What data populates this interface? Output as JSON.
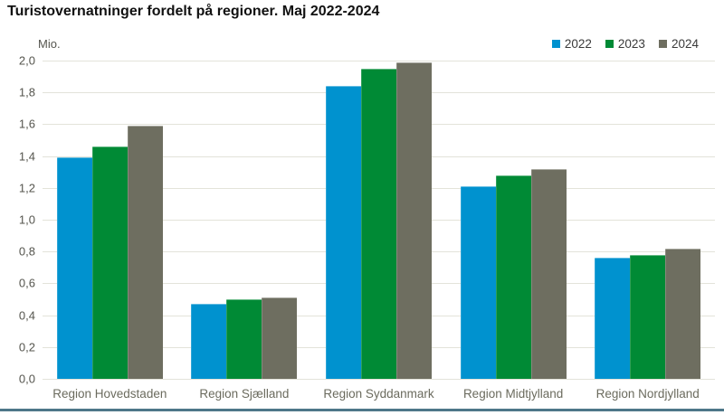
{
  "title": "Turistovernatninger fordelt på regioner. Maj 2022-2024",
  "colors": {
    "background": "#ffffff",
    "title_text": "#111111",
    "axis_text": "#55554e",
    "category_text": "#6b6b5e",
    "legend_text": "#3a3a3a",
    "gridline": "#e3e3da",
    "bottom_rule": "#4e7789",
    "series_2022": "#0092cf",
    "series_2023": "#008a35",
    "series_2024": "#6e6e60"
  },
  "chart_data": {
    "type": "bar",
    "title": "Turistovernatninger fordelt på regioner. Maj 2022-2024",
    "ylabel": "Mio.",
    "xlabel": "",
    "categories": [
      "Region Hovedstaden",
      "Region Sjælland",
      "Region Syddanmark",
      "Region Midtjylland",
      "Region Nordjylland"
    ],
    "series": [
      {
        "name": "2022",
        "color": "#0092cf",
        "values": [
          1.39,
          0.47,
          1.84,
          1.21,
          0.76
        ]
      },
      {
        "name": "2023",
        "color": "#008a35",
        "values": [
          1.46,
          0.5,
          1.95,
          1.28,
          0.78
        ]
      },
      {
        "name": "2024",
        "color": "#6e6e60",
        "values": [
          1.59,
          0.51,
          1.99,
          1.32,
          0.82
        ]
      }
    ],
    "ylim": [
      0,
      2.0
    ],
    "ytick_step": 0.2,
    "ytick_labels": [
      "0,0",
      "0,2",
      "0,4",
      "0,6",
      "0,8",
      "1,0",
      "1,2",
      "1,4",
      "1,6",
      "1,8",
      "2,0"
    ],
    "grid": true,
    "legend_position": "top-right"
  }
}
